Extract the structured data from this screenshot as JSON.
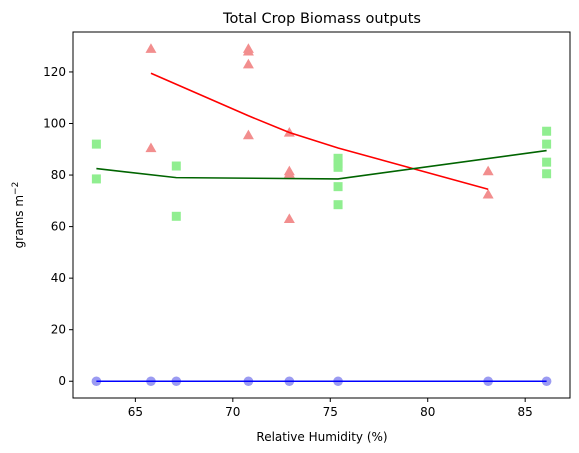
{
  "chart_data": {
    "type": "scatter",
    "title": "Total Crop Biomass outputs",
    "xlabel": "Relative Humidity (%)",
    "ylabel": "grams m",
    "ylabel_sup": "−2",
    "xlim": [
      61.8,
      87.3
    ],
    "ylim": [
      -6.5,
      135.5
    ],
    "xticks": [
      65,
      70,
      75,
      80,
      85
    ],
    "yticks": [
      0,
      20,
      40,
      60,
      80,
      100,
      120
    ],
    "grid": false,
    "legend": "none",
    "series": [
      {
        "marker": "triangle",
        "color": "#f28e8e",
        "points": [
          [
            65.8,
            129
          ],
          [
            65.8,
            90.5
          ],
          [
            70.8,
            129
          ],
          [
            70.8,
            128
          ],
          [
            70.8,
            123
          ],
          [
            70.8,
            95.5
          ],
          [
            72.9,
            96.5
          ],
          [
            72.9,
            81.5
          ],
          [
            72.9,
            80.5
          ],
          [
            72.9,
            63
          ],
          [
            83.1,
            81.5
          ],
          [
            83.1,
            72.5
          ]
        ]
      },
      {
        "marker": "square",
        "color": "#90ee90",
        "points": [
          [
            63.0,
            92
          ],
          [
            63.0,
            78.5
          ],
          [
            67.1,
            83.5
          ],
          [
            67.1,
            64
          ],
          [
            75.4,
            86.5
          ],
          [
            75.4,
            84.5
          ],
          [
            75.4,
            83
          ],
          [
            75.4,
            75.5
          ],
          [
            75.4,
            68.5
          ],
          [
            86.1,
            97
          ],
          [
            86.1,
            92
          ],
          [
            86.1,
            85
          ],
          [
            86.1,
            80.5
          ]
        ]
      },
      {
        "marker": "circle",
        "color": "#9b9bf2",
        "points": [
          [
            63.0,
            0
          ],
          [
            65.8,
            0
          ],
          [
            67.1,
            0
          ],
          [
            70.8,
            0
          ],
          [
            72.9,
            0
          ],
          [
            75.4,
            0
          ],
          [
            83.1,
            0
          ],
          [
            86.1,
            0
          ]
        ]
      }
    ],
    "lines": [
      {
        "color": "#ff0000",
        "points": [
          [
            65.8,
            119.5
          ],
          [
            70.8,
            103
          ],
          [
            72.9,
            96.5
          ],
          [
            75.4,
            90.5
          ],
          [
            83.1,
            74.5
          ]
        ]
      },
      {
        "color": "#006400",
        "points": [
          [
            63.0,
            82.5
          ],
          [
            67.1,
            79
          ],
          [
            75.4,
            78.5
          ],
          [
            86.1,
            89.5
          ]
        ]
      },
      {
        "color": "#0000ff",
        "points": [
          [
            63.0,
            0
          ],
          [
            86.1,
            0
          ]
        ]
      }
    ]
  }
}
